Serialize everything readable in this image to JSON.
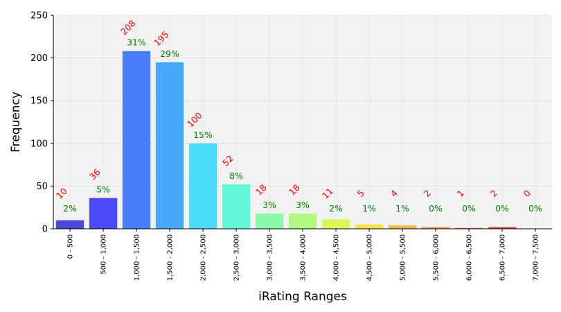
{
  "chart_data": {
    "type": "bar",
    "title": "",
    "xlabel": "iRating Ranges",
    "ylabel": "Frequency",
    "ylim": [
      0,
      250
    ],
    "yticks": [
      0,
      50,
      100,
      150,
      200,
      250
    ],
    "grid": true,
    "categories": [
      "0 - 500",
      "500 - 1,000",
      "1,000 - 1,500",
      "1,500 - 2,000",
      "2,000 - 2,500",
      "2,500 - 3,000",
      "3,000 - 3,500",
      "3,500 - 4,000",
      "4,000 - 4,500",
      "4,500 - 5,000",
      "5,000 - 5,500",
      "5,500 - 6,000",
      "6,000 - 6,500",
      "6,500 - 7,000",
      "7,000 - 7,500"
    ],
    "values": [
      10,
      36,
      208,
      195,
      100,
      52,
      18,
      18,
      11,
      5,
      4,
      2,
      1,
      2,
      0
    ],
    "count_labels": [
      "10",
      "36",
      "208",
      "195",
      "100",
      "52",
      "18",
      "18",
      "11",
      "5",
      "4",
      "2",
      "1",
      "2",
      "0"
    ],
    "percent_labels": [
      "2%",
      "5%",
      "31%",
      "29%",
      "15%",
      "8%",
      "3%",
      "3%",
      "2%",
      "1%",
      "1%",
      "0%",
      "0%",
      "0%",
      "0%"
    ],
    "colors": [
      "#4a48d8",
      "#4a4af8",
      "#4a7cf8",
      "#4aa8f8",
      "#4adcf8",
      "#62f8d8",
      "#8cf8a8",
      "#b0f880",
      "#d8f85a",
      "#f8e04a",
      "#f8b84a",
      "#f8944a",
      "#f8704a",
      "#d84a3a",
      "#b83030"
    ],
    "colors_meta": {
      "plot_background": "#f2f2f2",
      "grid": "#c8c8c8",
      "count_label": "#ff0000",
      "percent_label": "#008000"
    }
  }
}
